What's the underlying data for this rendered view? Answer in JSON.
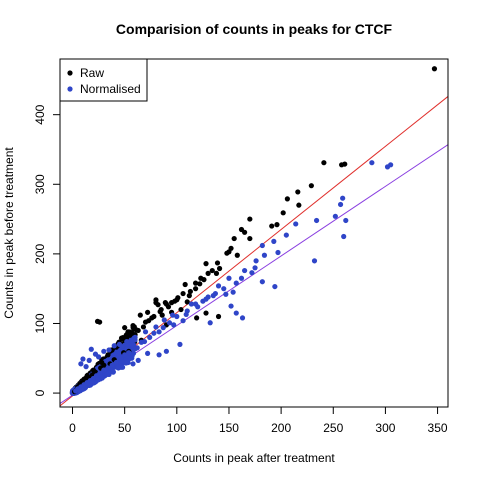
{
  "chart_data": {
    "type": "scatter",
    "title": "Comparision of counts in peaks for CTCF",
    "xlabel": "Counts in peak after treatment",
    "ylabel": "Counts in peak before treatment",
    "xlim": [
      -12,
      360
    ],
    "ylim": [
      -20,
      480
    ],
    "x_ticks": [
      0,
      50,
      100,
      150,
      200,
      250,
      300,
      350
    ],
    "y_ticks": [
      0,
      100,
      200,
      300,
      400
    ],
    "grid": false,
    "legend_position": "top-left",
    "colors": {
      "Raw": "#000000",
      "Normalised": "#2f45c8",
      "fit_raw": "#e0302d",
      "fit_normalised": "#8a3fe0"
    },
    "series": [
      {
        "name": "Raw",
        "color": "#000000",
        "points": [
          [
            347,
            466
          ],
          [
            258,
            328
          ],
          [
            261,
            329
          ],
          [
            241,
            331
          ],
          [
            229,
            298
          ],
          [
            216,
            289
          ],
          [
            217,
            270
          ],
          [
            206,
            279
          ],
          [
            202,
            259
          ],
          [
            191,
            240
          ],
          [
            196,
            242
          ],
          [
            170,
            250
          ],
          [
            165,
            231
          ],
          [
            170,
            222
          ],
          [
            162,
            235
          ],
          [
            155,
            222
          ],
          [
            139,
            187
          ],
          [
            152,
            208
          ],
          [
            150,
            203
          ],
          [
            148,
            201
          ],
          [
            158,
            198
          ],
          [
            141,
            179
          ],
          [
            134,
            176
          ],
          [
            128,
            186
          ],
          [
            126,
            163
          ],
          [
            122,
            157
          ],
          [
            118,
            158
          ],
          [
            112,
            140
          ],
          [
            108,
            156
          ],
          [
            101,
            137
          ],
          [
            98,
            132
          ],
          [
            95,
            130
          ],
          [
            89,
            130
          ],
          [
            90,
            128
          ],
          [
            82,
            127
          ],
          [
            80,
            134
          ],
          [
            84,
            117
          ],
          [
            76,
            108
          ],
          [
            70,
            102
          ],
          [
            65,
            112
          ],
          [
            61,
            91
          ],
          [
            68,
            95
          ],
          [
            58,
            97
          ],
          [
            55,
            83
          ],
          [
            50,
            94
          ],
          [
            47,
            79
          ],
          [
            45,
            73
          ],
          [
            42,
            66
          ],
          [
            38,
            62
          ],
          [
            24,
            103
          ],
          [
            26,
            102
          ],
          [
            80,
            130
          ],
          [
            95,
            116
          ],
          [
            90,
            98
          ],
          [
            118,
            150
          ],
          [
            138,
            172
          ],
          [
            119,
            108
          ],
          [
            140,
            110
          ],
          [
            128,
            115
          ],
          [
            110,
            131
          ],
          [
            104,
            120
          ],
          [
            86,
            112
          ],
          [
            72,
            116
          ],
          [
            60,
            84
          ],
          [
            66,
            76
          ],
          [
            54,
            60
          ],
          [
            49,
            58
          ],
          [
            40,
            48
          ],
          [
            36,
            42
          ],
          [
            30,
            40
          ],
          [
            27,
            36
          ],
          [
            22,
            30
          ],
          [
            19,
            26
          ],
          [
            16,
            22
          ],
          [
            13,
            18
          ],
          [
            10,
            13
          ],
          [
            8,
            10
          ],
          [
            6,
            8
          ],
          [
            4,
            5
          ],
          [
            3,
            3
          ],
          [
            2,
            2
          ],
          [
            34,
            55
          ],
          [
            28,
            44
          ],
          [
            20,
            33
          ],
          [
            14,
            25
          ],
          [
            11,
            20
          ],
          [
            9,
            15
          ],
          [
            7,
            12
          ],
          [
            5,
            9
          ],
          [
            44,
            70
          ],
          [
            52,
            80
          ],
          [
            57,
            86
          ],
          [
            63,
            90
          ],
          [
            73,
            104
          ],
          [
            78,
            110
          ],
          [
            85,
            120
          ],
          [
            92,
            124
          ],
          [
            100,
            134
          ],
          [
            106,
            143
          ],
          [
            113,
            146
          ],
          [
            123,
            165
          ],
          [
            130,
            172
          ]
        ]
      },
      {
        "name": "Normalised",
        "color": "#2f45c8",
        "points": [
          [
            305,
            328
          ],
          [
            302,
            325
          ],
          [
            287,
            331
          ],
          [
            259,
            280
          ],
          [
            257,
            271
          ],
          [
            262,
            248
          ],
          [
            252,
            254
          ],
          [
            260,
            225
          ],
          [
            234,
            248
          ],
          [
            232,
            190
          ],
          [
            214,
            243
          ],
          [
            205,
            227
          ],
          [
            193,
            218
          ],
          [
            182,
            212
          ],
          [
            197,
            202
          ],
          [
            176,
            190
          ],
          [
            184,
            198
          ],
          [
            175,
            180
          ],
          [
            172,
            173
          ],
          [
            165,
            176
          ],
          [
            162,
            165
          ],
          [
            157,
            158
          ],
          [
            150,
            165
          ],
          [
            154,
            145
          ],
          [
            147,
            142
          ],
          [
            140,
            154
          ],
          [
            137,
            143
          ],
          [
            130,
            138
          ],
          [
            125,
            132
          ],
          [
            120,
            124
          ],
          [
            114,
            128
          ],
          [
            109,
            113
          ],
          [
            100,
            110
          ],
          [
            106,
            104
          ],
          [
            97,
            98
          ],
          [
            93,
            101
          ],
          [
            87,
            94
          ],
          [
            83,
            88
          ],
          [
            78,
            86
          ],
          [
            74,
            80
          ],
          [
            69,
            74
          ],
          [
            66,
            73
          ],
          [
            62,
            65
          ],
          [
            58,
            64
          ],
          [
            54,
            58
          ],
          [
            50,
            55
          ],
          [
            46,
            50
          ],
          [
            42,
            44
          ],
          [
            38,
            40
          ],
          [
            34,
            36
          ],
          [
            30,
            33
          ],
          [
            26,
            28
          ],
          [
            23,
            25
          ],
          [
            20,
            21
          ],
          [
            17,
            18
          ],
          [
            14,
            15
          ],
          [
            11,
            12
          ],
          [
            8,
            9
          ],
          [
            5,
            6
          ],
          [
            3,
            3
          ],
          [
            194,
            153
          ],
          [
            182,
            160
          ],
          [
            163,
            108
          ],
          [
            157,
            115
          ],
          [
            152,
            125
          ],
          [
            132,
            101
          ],
          [
            103,
            70
          ],
          [
            90,
            60
          ],
          [
            83,
            55
          ],
          [
            72,
            57
          ],
          [
            63,
            47
          ],
          [
            58,
            42
          ],
          [
            48,
            37
          ],
          [
            44,
            38
          ],
          [
            39,
            30
          ],
          [
            33,
            27
          ],
          [
            28,
            23
          ],
          [
            24,
            19
          ],
          [
            19,
            15
          ],
          [
            15,
            12
          ],
          [
            12,
            9
          ],
          [
            9,
            7
          ],
          [
            6,
            5
          ],
          [
            18,
            63
          ],
          [
            22,
            56
          ],
          [
            10,
            49
          ],
          [
            8,
            42
          ],
          [
            13,
            38
          ],
          [
            16,
            47
          ],
          [
            25,
            52
          ],
          [
            30,
            60
          ],
          [
            35,
            62
          ],
          [
            40,
            68
          ],
          [
            45,
            70
          ],
          [
            52,
            74
          ],
          [
            60,
            80
          ],
          [
            70,
            88
          ],
          [
            80,
            95
          ],
          [
            88,
            105
          ],
          [
            96,
            112
          ],
          [
            110,
            118
          ],
          [
            118,
            128
          ],
          [
            128,
            135
          ],
          [
            135,
            140
          ],
          [
            145,
            150
          ]
        ]
      }
    ],
    "fit_lines": [
      {
        "name": "fit_raw",
        "color": "#e0302d",
        "slope": 1.195,
        "intercept": -4
      },
      {
        "name": "fit_normalised",
        "color": "#8a3fe0",
        "slope": 1.0,
        "intercept": -3
      }
    ]
  }
}
